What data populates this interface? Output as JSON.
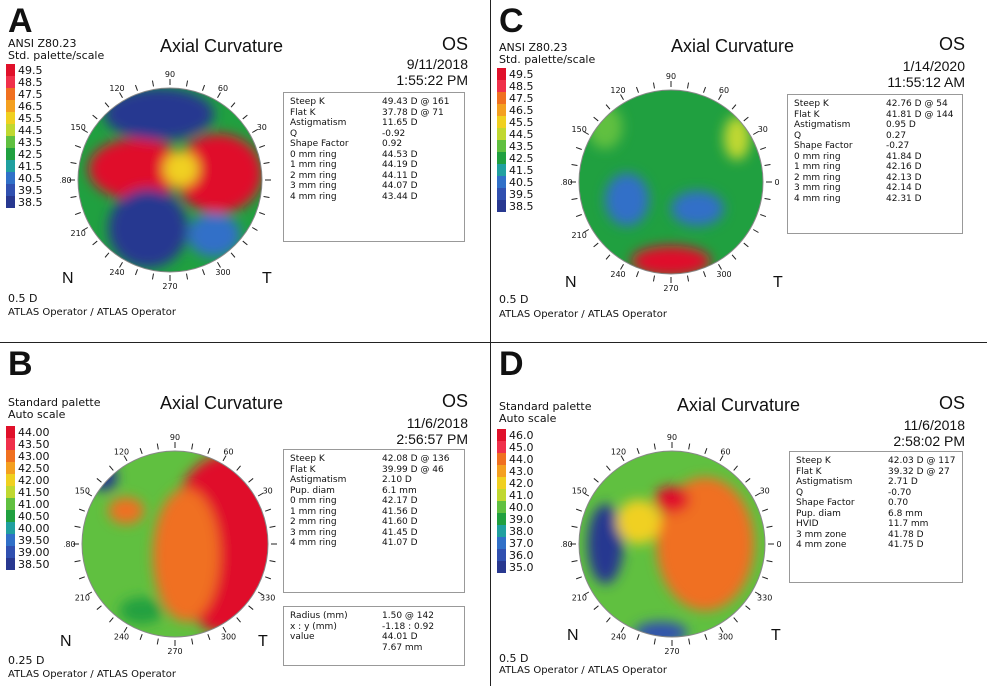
{
  "panels": [
    {
      "letter": "A",
      "palette_label": [
        "ANSI Z80.23",
        "Std. palette/scale"
      ],
      "title": "Axial Curvature",
      "eye": "OS",
      "date": "9/11/2018",
      "time": "1:55:22 PM",
      "scale": [
        "49.5",
        "48.5",
        "47.5",
        "46.5",
        "45.5",
        "44.5",
        "43.5",
        "42.5",
        "41.5",
        "40.5",
        "39.5",
        "38.5"
      ],
      "step": "0.5 D",
      "operator": "ATLAS Operator / ATLAS Operator",
      "nasal": "N",
      "temporal": "T",
      "angles": [
        "90",
        "60",
        "30",
        "120",
        "150",
        "180",
        "210",
        "240",
        "270",
        "300"
      ],
      "stats": [
        [
          "Steep K",
          "49.43 D @ 161"
        ],
        [
          "Flat K",
          "37.78 D @ 71"
        ],
        [
          "Astigmatism",
          "11.65 D"
        ],
        [
          "Q",
          "-0.92"
        ],
        [
          "Shape Factor",
          "0.92"
        ],
        [
          "0 mm ring",
          "44.53 D"
        ],
        [
          "1 mm ring",
          "44.19 D"
        ],
        [
          "2 mm ring",
          "44.11 D"
        ],
        [
          "3 mm ring",
          "44.07 D"
        ],
        [
          "4 mm ring",
          "43.44 D"
        ]
      ]
    },
    {
      "letter": "C",
      "palette_label": [
        "ANSI Z80.23",
        "Std. palette/scale"
      ],
      "title": "Axial Curvature",
      "eye": "OS",
      "date": "1/14/2020",
      "time": "11:55:12 AM",
      "scale": [
        "49.5",
        "48.5",
        "47.5",
        "46.5",
        "45.5",
        "44.5",
        "43.5",
        "42.5",
        "41.5",
        "40.5",
        "39.5",
        "38.5"
      ],
      "step": "0.5 D",
      "operator": "ATLAS Operator / ATLAS Operator",
      "nasal": "N",
      "temporal": "T",
      "angles": [
        "90",
        "60",
        "30",
        "0",
        "120",
        "150",
        "180",
        "210",
        "240",
        "270",
        "300"
      ],
      "stats": [
        [
          "Steep K",
          "42.76 D @ 54"
        ],
        [
          "Flat K",
          "41.81 D @ 144"
        ],
        [
          "Astigmatism",
          "0.95 D"
        ],
        [
          "Q",
          "0.27"
        ],
        [
          "Shape Factor",
          "-0.27"
        ],
        [
          "0 mm ring",
          "41.84 D"
        ],
        [
          "1 mm ring",
          "42.16 D"
        ],
        [
          "2 mm ring",
          "42.13 D"
        ],
        [
          "3 mm ring",
          "42.14 D"
        ],
        [
          "4 mm ring",
          "42.31 D"
        ]
      ]
    },
    {
      "letter": "B",
      "palette_label": [
        "Standard palette",
        "Auto scale"
      ],
      "title": "Axial Curvature",
      "eye": "OS",
      "date": "11/6/2018",
      "time": "2:56:57 PM",
      "scale": [
        "44.00",
        "43.50",
        "43.00",
        "42.50",
        "42.00",
        "41.50",
        "41.00",
        "40.50",
        "40.00",
        "39.50",
        "39.00",
        "38.50"
      ],
      "step": "0.25 D",
      "operator": "ATLAS Operator / ATLAS Operator",
      "nasal": "N",
      "temporal": "T",
      "angles": [
        "90",
        "60",
        "30",
        "120",
        "150",
        "180",
        "210",
        "240",
        "270",
        "300",
        "330"
      ],
      "stats": [
        [
          "Steep K",
          "42.08 D @ 136"
        ],
        [
          "Flat K",
          "39.99 D @ 46"
        ],
        [
          "Astigmatism",
          "2.10 D"
        ],
        [
          "Pup. diam",
          "6.1 mm"
        ],
        [
          "0 mm ring",
          "42.17 D"
        ],
        [
          "1 mm ring",
          "41.56 D"
        ],
        [
          "2 mm ring",
          "41.60 D"
        ],
        [
          "3 mm ring",
          "41.45 D"
        ],
        [
          "4 mm ring",
          "41.07 D"
        ]
      ],
      "radius": [
        [
          "Radius (mm)",
          "1.50 @ 142"
        ],
        [
          "x : y (mm)",
          "-1.18 : 0.92"
        ],
        [
          "value",
          "44.01 D"
        ],
        [
          "",
          "7.67 mm"
        ]
      ]
    },
    {
      "letter": "D",
      "palette_label": [
        "Standard palette",
        "Auto scale"
      ],
      "title": "Axial Curvature",
      "eye": "OS",
      "date": "11/6/2018",
      "time": "2:58:02 PM",
      "scale": [
        "46.0",
        "45.0",
        "44.0",
        "43.0",
        "42.0",
        "41.0",
        "40.0",
        "39.0",
        "38.0",
        "37.0",
        "36.0",
        "35.0"
      ],
      "step": "0.5 D",
      "operator": "ATLAS Operator / ATLAS Operator",
      "nasal": "N",
      "temporal": "T",
      "angles": [
        "90",
        "60",
        "30",
        "0",
        "120",
        "150",
        "180",
        "210",
        "240",
        "270",
        "300",
        "330"
      ],
      "stats": [
        [
          "Steep K",
          "42.03 D @ 117"
        ],
        [
          "Flat K",
          "39.32 D @ 27"
        ],
        [
          "Astigmatism",
          "2.71 D"
        ],
        [
          "Q",
          "-0.70"
        ],
        [
          "Shape Factor",
          "0.70"
        ],
        [
          "Pup. diam",
          "6.8 mm"
        ],
        [
          "HVID",
          "11.7 mm"
        ],
        [
          "3 mm zone",
          "41.78 D"
        ],
        [
          "4 mm zone",
          "41.75 D"
        ]
      ]
    }
  ],
  "palette_colors": [
    "#e0102a",
    "#f0304a",
    "#f07020",
    "#f4a020",
    "#f0d020",
    "#c0d830",
    "#60c040",
    "#20a040",
    "#20a0a0",
    "#3070c8",
    "#3050b0",
    "#283890"
  ]
}
